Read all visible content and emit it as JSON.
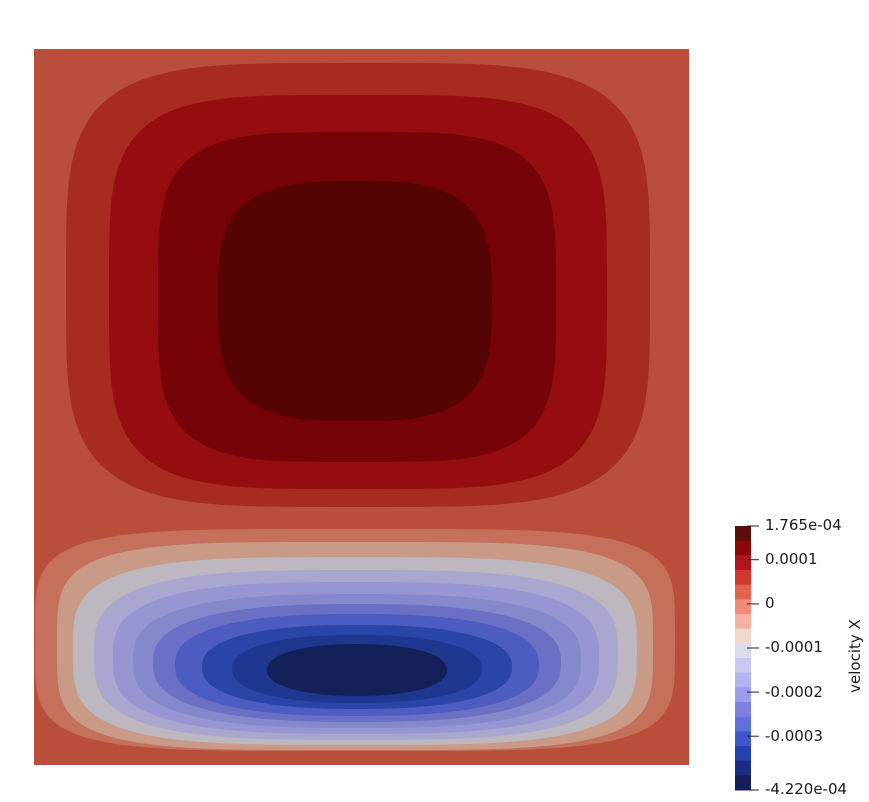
{
  "chart_data": {
    "type": "heatmap",
    "field": "velocity X",
    "range": [
      -0.000422,
      0.0001765
    ],
    "pattern": "two counter-rotating cells; positive maximum in upper cell, negative minimum in lower cell",
    "contour_levels": [
      -0.000422,
      -0.0003,
      -0.0002,
      -0.0001,
      0,
      0.0001,
      0.0001765
    ],
    "colorbar": {
      "title": "velocity X",
      "labels": [
        "1.765e-04",
        "0.0001",
        "0",
        "-0.0001",
        "-0.0002",
        "-0.0003",
        "-4.220e-04"
      ],
      "tick_values": [
        0.0001765,
        0.0001,
        0,
        -0.0001,
        -0.0002,
        -0.0003,
        -0.000422
      ]
    },
    "colormap": {
      "positive_bands_outer_to_inner": [
        "#b94e3a",
        "#a82b1f",
        "#960d10",
        "#750307",
        "#560402"
      ],
      "negative_bands_outer_to_inner": [
        "#c5705a",
        "#c99b86",
        "#bdb7bf",
        "#a9a7cf",
        "#9896d2",
        "#8688cc",
        "#6b70c5",
        "#4d5cc0",
        "#2a45a8",
        "#1e378f",
        "#142058"
      ],
      "legend_swatches_top_to_bottom": [
        "#5a0e0c",
        "#8a0808",
        "#b3151a",
        "#cf3a2c",
        "#e0624f",
        "#f08b78",
        "#f3b2a3",
        "#f3d8d0",
        "#dcdcf0",
        "#c8c8f2",
        "#b4b4ee",
        "#9c9cec",
        "#8080e4",
        "#6070dc",
        "#3f55cc",
        "#2640ae",
        "#1a2c84",
        "#131d58"
      ]
    }
  }
}
